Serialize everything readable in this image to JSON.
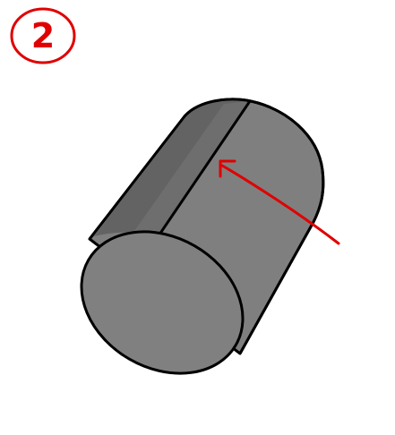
{
  "step": {
    "number": "2"
  },
  "colors": {
    "background": "#ffffff",
    "cylinder_body": "#7f7f7f",
    "cylinder_end_face": "#808080",
    "cylinder_shaded_strip": "#636363",
    "outline": "#000000",
    "annotation": "#e00000"
  },
  "icons": {
    "cylinder": "cylinder-icon",
    "arrow": "arrow-icon",
    "step_circle": "circle-icon"
  }
}
